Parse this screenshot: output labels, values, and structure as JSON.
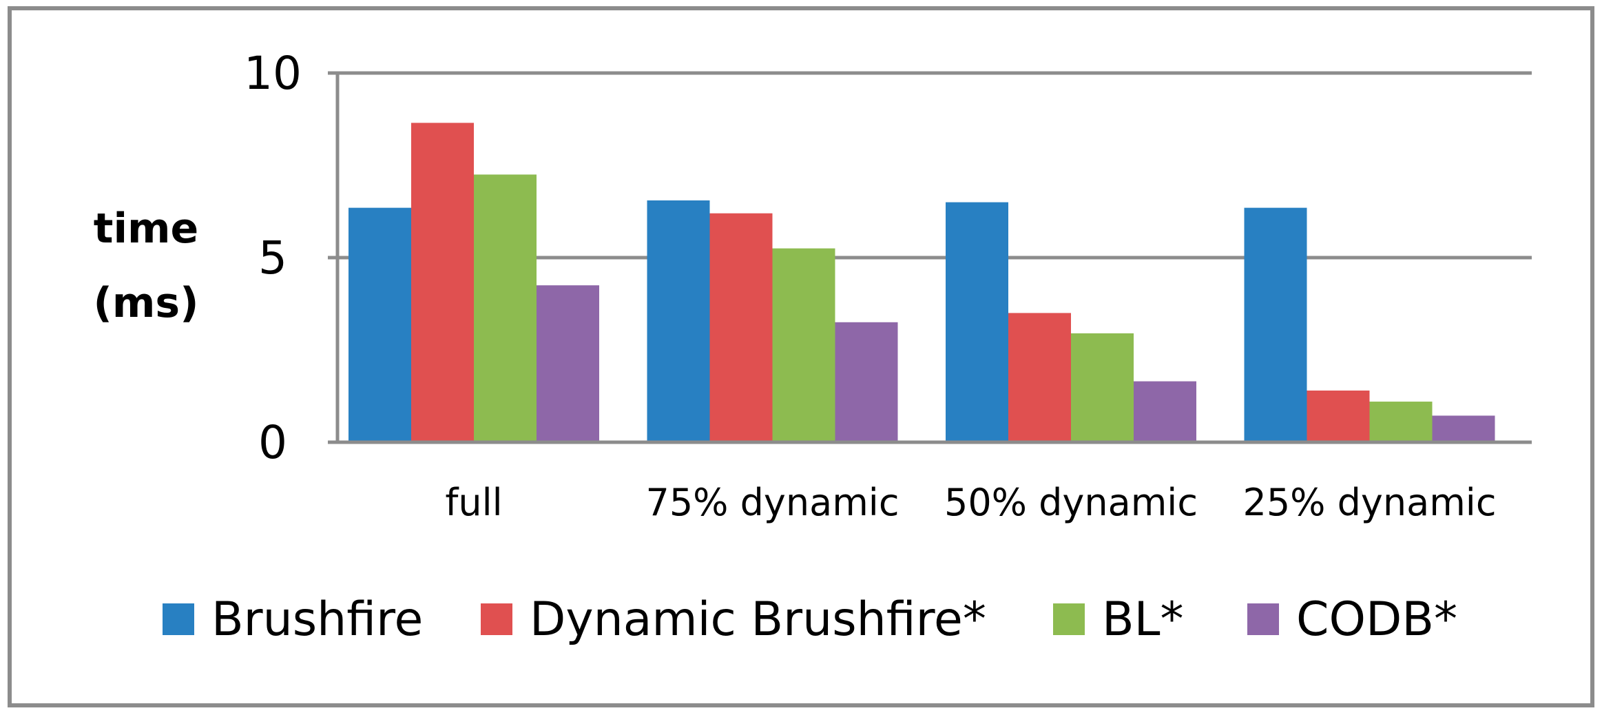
{
  "chart_data": {
    "type": "bar",
    "categories": [
      "full",
      "75% dynamic",
      "50% dynamic",
      "25% dynamic"
    ],
    "ylabel_lines": [
      "time",
      "(ms)"
    ],
    "ylim": [
      0,
      10
    ],
    "yticks": [
      "0",
      "5",
      "10"
    ],
    "grid": true,
    "legend_position": "bottom",
    "series": [
      {
        "name": "Brushfire",
        "color": "#2880C2",
        "values": [
          6.35,
          6.55,
          6.5,
          6.35
        ]
      },
      {
        "name": "Dynamic Brushfire*",
        "color": "#E05050",
        "values": [
          8.65,
          6.2,
          3.5,
          1.4
        ]
      },
      {
        "name": "BL*",
        "color": "#8DBB50",
        "values": [
          7.25,
          5.25,
          2.95,
          1.1
        ]
      },
      {
        "name": "CODB*",
        "color": "#8E67A8",
        "values": [
          4.25,
          3.25,
          1.65,
          0.72
        ]
      }
    ]
  }
}
